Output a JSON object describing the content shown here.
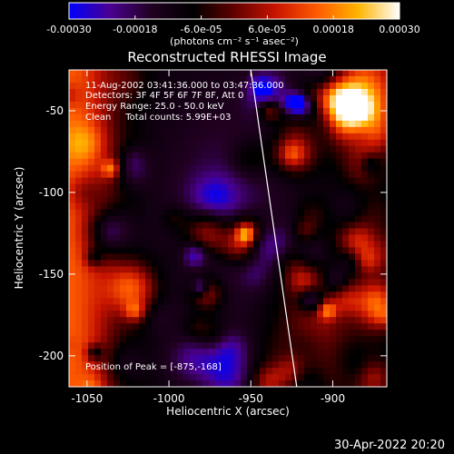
{
  "chart_data": {
    "type": "heatmap",
    "title": "Reconstructed RHESSI Image",
    "xlabel": "Heliocentric X (arcsec)",
    "ylabel": "Heliocentric Y (arcsec)",
    "xlim": [
      -1061,
      -867
    ],
    "ylim": [
      -219,
      -25
    ],
    "x_ticks": [
      -1050,
      -1000,
      -950,
      -900
    ],
    "x_tick_labels": [
      "-1050",
      "-1000",
      "-950",
      "-900"
    ],
    "y_ticks": [
      -50,
      -100,
      -150,
      -200
    ],
    "y_tick_labels": [
      "-50",
      "-100",
      "-150",
      "-200"
    ],
    "colorbar": {
      "range": [
        -0.0003,
        0.0003
      ],
      "ticks": [
        -0.0003,
        -0.00018,
        -6e-05,
        6e-05,
        0.00018,
        0.0003
      ],
      "tick_labels": [
        "-0.00030",
        "-0.00018",
        "-6.0e-05",
        "6.0e-05",
        "0.00018",
        "0.00030"
      ],
      "units": "(photons cm⁻² s⁻¹ asec⁻²)",
      "colormap": [
        "#0000ff",
        "#4b0090",
        "#200020",
        "#000000",
        "#600000",
        "#c81400",
        "#ff5a00",
        "#ffb400",
        "#ffffff"
      ]
    },
    "annotations": [
      "11-Aug-2002 03:41:36.000 to 03:47:36.000",
      "Detectors: 3F 4F 5F 6F 7F 8F, Att 0",
      "Energy Range: 25.0 - 50.0 keV",
      "Clean     Total counts: 5.99E+03",
      "Position of Peak = [-875,-168]"
    ],
    "limb_line": [
      [
        -950,
        -25
      ],
      [
        -922,
        -219
      ]
    ],
    "grid": false,
    "legend": "none"
  },
  "footer": {
    "timestamp": "30-Apr-2022 20:20"
  }
}
